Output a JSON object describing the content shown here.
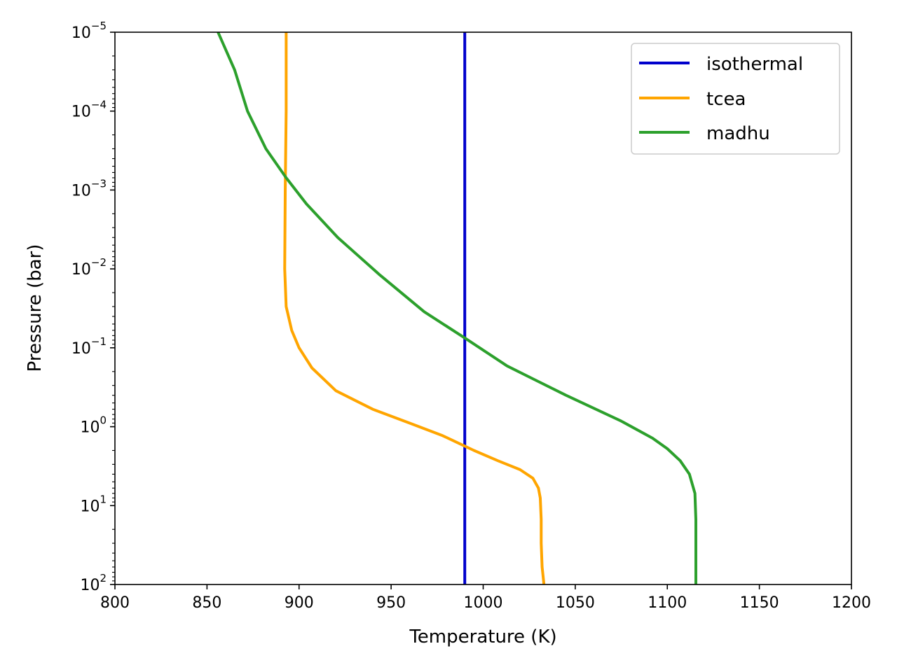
{
  "chart_data": {
    "type": "line",
    "xlabel": "Temperature  (K)",
    "ylabel": "Pressure  (bar)",
    "xlim": [
      800,
      1200
    ],
    "ylim": [
      100,
      1e-05
    ],
    "yscale": "log",
    "y_inverted": true,
    "grid": false,
    "legend_position": "top-right",
    "x_ticks": [
      800,
      850,
      900,
      950,
      1000,
      1050,
      1100,
      1150,
      1200
    ],
    "x_tick_labels": [
      "800",
      "850",
      "900",
      "950",
      "1000",
      "1050",
      "1100",
      "1150",
      "1200"
    ],
    "y_ticks": [
      {
        "value": 1e-05,
        "base": "10",
        "exp": "−5"
      },
      {
        "value": 0.0001,
        "base": "10",
        "exp": "−4"
      },
      {
        "value": 0.001,
        "base": "10",
        "exp": "−3"
      },
      {
        "value": 0.01,
        "base": "10",
        "exp": "−2"
      },
      {
        "value": 0.1,
        "base": "10",
        "exp": "−1"
      },
      {
        "value": 1,
        "base": "10",
        "exp": "0"
      },
      {
        "value": 10,
        "base": "10",
        "exp": "1"
      },
      {
        "value": 100,
        "base": "10",
        "exp": "2"
      }
    ],
    "series": [
      {
        "name": "isothermal",
        "color": "#0000cc",
        "points": [
          [
            990,
            1e-05
          ],
          [
            990,
            100
          ]
        ]
      },
      {
        "name": "tcea",
        "color": "#ffa500",
        "points": [
          [
            893,
            1e-05
          ],
          [
            893,
            0.0001
          ],
          [
            892.5,
            0.001
          ],
          [
            892.2,
            0.01
          ],
          [
            893,
            0.03
          ],
          [
            896,
            0.06
          ],
          [
            900,
            0.1
          ],
          [
            907,
            0.18
          ],
          [
            920,
            0.35
          ],
          [
            940,
            0.6
          ],
          [
            960,
            0.9
          ],
          [
            978,
            1.3
          ],
          [
            995,
            2.0
          ],
          [
            1008,
            2.7
          ],
          [
            1020,
            3.5
          ],
          [
            1027,
            4.5
          ],
          [
            1030,
            6.0
          ],
          [
            1031,
            8.0
          ],
          [
            1031.5,
            15
          ],
          [
            1031.5,
            30
          ],
          [
            1032,
            60
          ],
          [
            1033,
            100
          ]
        ]
      },
      {
        "name": "madhu",
        "color": "#2ca02c",
        "points": [
          [
            856,
            1e-05
          ],
          [
            865,
            3e-05
          ],
          [
            872,
            0.0001
          ],
          [
            882,
            0.0003
          ],
          [
            893,
            0.0007
          ],
          [
            904,
            0.0015
          ],
          [
            921,
            0.004
          ],
          [
            944,
            0.012
          ],
          [
            968,
            0.035
          ],
          [
            990,
            0.075
          ],
          [
            1013,
            0.17
          ],
          [
            1045,
            0.4
          ],
          [
            1075,
            0.85
          ],
          [
            1092,
            1.4
          ],
          [
            1100,
            1.9
          ],
          [
            1107,
            2.7
          ],
          [
            1112,
            4.0
          ],
          [
            1115,
            7.0
          ],
          [
            1115.5,
            15
          ],
          [
            1115.5,
            100
          ]
        ]
      }
    ]
  }
}
